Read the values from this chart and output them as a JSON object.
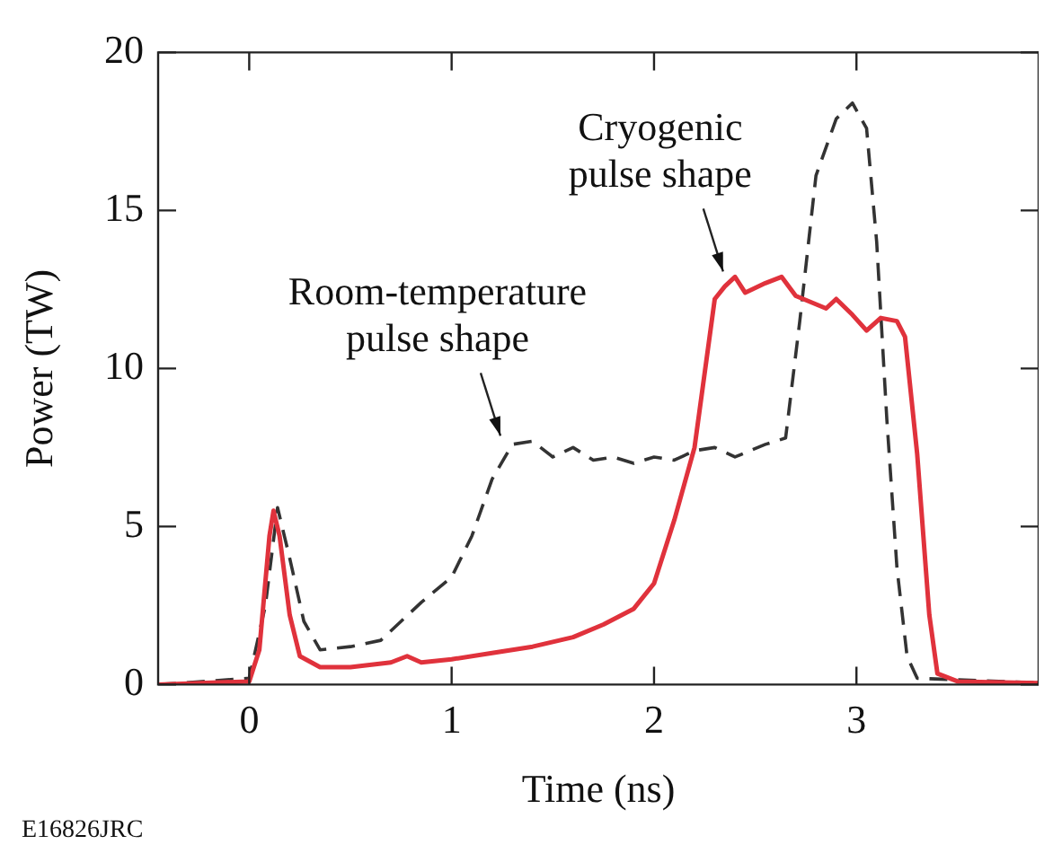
{
  "chart_data": {
    "type": "line",
    "xlabel": "Time (ns)",
    "ylabel": "Power (TW)",
    "xlim": [
      -0.45,
      3.9
    ],
    "xticks": [
      0,
      1,
      2,
      3
    ],
    "ylim": [
      0,
      20
    ],
    "yticks": [
      0,
      5,
      10,
      15,
      20
    ],
    "grid": false,
    "legend": false,
    "marker": "none",
    "series": [
      {
        "color": "#e0323c",
        "line_style": "solid",
        "x": [
          -0.45,
          0.0,
          0.05,
          0.1,
          0.12,
          0.15,
          0.2,
          0.25,
          0.35,
          0.5,
          0.7,
          0.78,
          0.85,
          1.0,
          1.2,
          1.4,
          1.6,
          1.75,
          1.9,
          2.0,
          2.1,
          2.2,
          2.3,
          2.35,
          2.4,
          2.45,
          2.55,
          2.63,
          2.7,
          2.85,
          2.9,
          2.98,
          3.05,
          3.12,
          3.2,
          3.24,
          3.3,
          3.36,
          3.4,
          3.5,
          3.9
        ],
        "values": [
          0,
          0.1,
          1.1,
          4.7,
          5.5,
          4.7,
          2.2,
          0.9,
          0.55,
          0.55,
          0.7,
          0.9,
          0.7,
          0.8,
          1.0,
          1.2,
          1.5,
          1.9,
          2.4,
          3.2,
          5.2,
          7.5,
          12.2,
          12.6,
          12.9,
          12.4,
          12.7,
          12.9,
          12.3,
          11.9,
          12.2,
          11.7,
          11.2,
          11.6,
          11.5,
          11.0,
          7.3,
          2.2,
          0.35,
          0.1,
          0.05
        ]
      },
      {
        "color": "#333333",
        "line_style": "dashed",
        "x": [
          -0.45,
          0.0,
          0.08,
          0.14,
          0.2,
          0.27,
          0.35,
          0.5,
          0.65,
          0.75,
          0.85,
          1.0,
          1.1,
          1.2,
          1.3,
          1.4,
          1.5,
          1.6,
          1.7,
          1.8,
          1.9,
          2.0,
          2.1,
          2.2,
          2.3,
          2.4,
          2.55,
          2.65,
          2.72,
          2.8,
          2.9,
          2.98,
          3.05,
          3.1,
          3.15,
          3.2,
          3.25,
          3.3,
          3.9
        ],
        "values": [
          0,
          0.2,
          2.5,
          5.6,
          4.0,
          2.0,
          1.1,
          1.2,
          1.4,
          2.0,
          2.6,
          3.4,
          4.7,
          6.5,
          7.6,
          7.7,
          7.2,
          7.5,
          7.1,
          7.2,
          7.0,
          7.2,
          7.1,
          7.4,
          7.5,
          7.2,
          7.6,
          7.8,
          11.5,
          16.1,
          17.9,
          18.4,
          17.6,
          14.0,
          8.4,
          3.7,
          0.9,
          0.2,
          0.05
        ]
      }
    ],
    "annotations": [
      {
        "text": "Room-temperature\npulse shape",
        "x": 1.25,
        "y": 7.7
      },
      {
        "text": "Cryogenic\npulse shape",
        "x": 2.35,
        "y": 12.9
      },
      "E16826JRC"
    ]
  }
}
